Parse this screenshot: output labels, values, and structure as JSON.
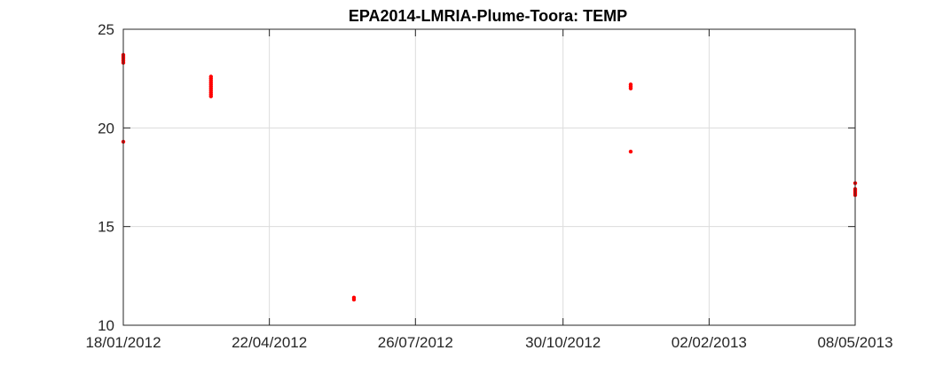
{
  "chart_data": {
    "type": "scatter",
    "title": "EPA2014-LMRIA-Plume-Toora: TEMP",
    "xlabel": "",
    "ylabel": "",
    "x_axis": {
      "kind": "date",
      "range": [
        "2012-01-18",
        "2013-05-08"
      ],
      "ticks": [
        "2012-01-18",
        "2012-04-22",
        "2012-07-26",
        "2012-10-30",
        "2013-02-02",
        "2013-05-08"
      ],
      "tick_labels": [
        "18/01/2012",
        "22/04/2012",
        "26/07/2012",
        "30/10/2012",
        "02/02/2013",
        "08/05/2013"
      ]
    },
    "y_axis": {
      "range": [
        10,
        25
      ],
      "ticks": [
        10,
        15,
        20,
        25
      ],
      "tick_labels": [
        "10",
        "15",
        "20",
        "25"
      ]
    },
    "grid": true,
    "marker_color": "#ff0000",
    "series": [
      {
        "points": [
          [
            "2012-01-18",
            23.7
          ],
          [
            "2012-01-18",
            23.6
          ],
          [
            "2012-01-18",
            23.5
          ],
          [
            "2012-01-18",
            23.4
          ],
          [
            "2012-01-18",
            23.3
          ],
          [
            "2012-01-18",
            19.3
          ],
          [
            "2012-03-15",
            22.6
          ],
          [
            "2012-03-15",
            22.5
          ],
          [
            "2012-03-15",
            22.4
          ],
          [
            "2012-03-15",
            22.3
          ],
          [
            "2012-03-15",
            22.2
          ],
          [
            "2012-03-15",
            22.1
          ],
          [
            "2012-03-15",
            22.0
          ],
          [
            "2012-03-15",
            21.9
          ],
          [
            "2012-03-15",
            21.8
          ],
          [
            "2012-03-15",
            21.7
          ],
          [
            "2012-03-15",
            21.6
          ],
          [
            "2012-06-16",
            11.4
          ],
          [
            "2012-06-16",
            11.3
          ],
          [
            "2012-12-13",
            22.2
          ],
          [
            "2012-12-13",
            22.1
          ],
          [
            "2012-12-13",
            22.0
          ],
          [
            "2012-12-13",
            18.8
          ],
          [
            "2013-05-08",
            17.2
          ],
          [
            "2013-05-08",
            16.9
          ],
          [
            "2013-05-08",
            16.8
          ],
          [
            "2013-05-08",
            16.7
          ],
          [
            "2013-05-08",
            16.6
          ]
        ]
      }
    ]
  }
}
